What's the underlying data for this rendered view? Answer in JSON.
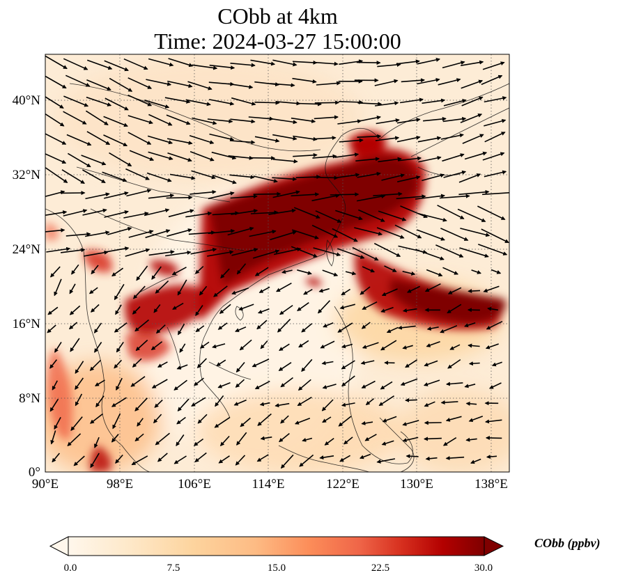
{
  "title": {
    "line1": "CObb at 4km",
    "line2": "Time: 2024-03-27 15:00:00"
  },
  "map": {
    "lon_range": [
      90,
      139
    ],
    "lat_range": [
      0,
      44
    ],
    "lon_ticks": [
      "90°E",
      "98°E",
      "106°E",
      "114°E",
      "122°E",
      "130°E",
      "138°E"
    ],
    "lat_ticks": [
      "0°",
      "8°N",
      "16°N",
      "24°N",
      "32°N",
      "40°N"
    ],
    "gridlines": "dotted",
    "overlay": "wind-vectors"
  },
  "colorbar": {
    "label": "CObb (ppbv)",
    "ticks": [
      "0.0",
      "7.5",
      "15.0",
      "22.5",
      "30.0"
    ],
    "range": [
      0,
      30
    ],
    "extend": "both",
    "colormap": "OrRd",
    "colors": [
      "#fff7ec",
      "#fee8c8",
      "#fdd49e",
      "#fdbb84",
      "#fc8d59",
      "#ef6548",
      "#d7301f",
      "#b30000",
      "#7f0000"
    ]
  }
}
